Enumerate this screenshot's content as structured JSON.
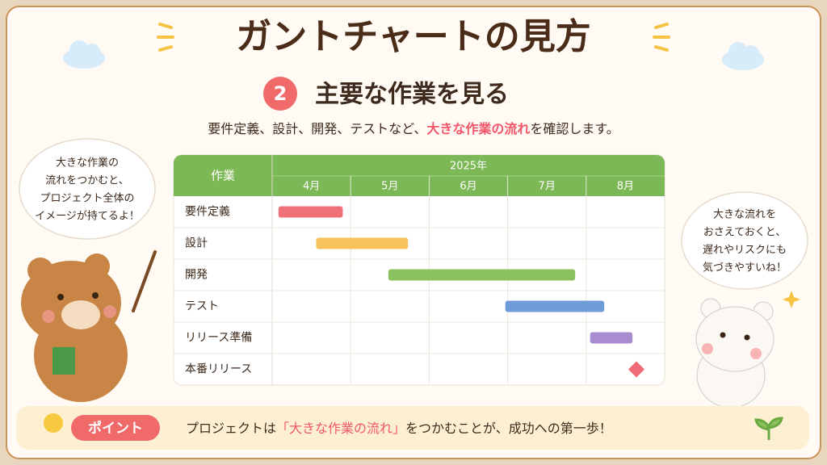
{
  "header": {
    "title": "ガントチャートの見方",
    "step": "2",
    "subtitle": "主要な作業を見る",
    "description": [
      "要件定義、設計、開発、テストなど、",
      "大きな作業の流れ",
      "を確認します。"
    ]
  },
  "gantt": {
    "task_header": "作業",
    "year": "2025年",
    "months": [
      "4月",
      "5月",
      "6月",
      "7月",
      "8月"
    ],
    "xlim": [
      4,
      9
    ],
    "tasks": [
      {
        "name": "要件定義",
        "start": 4.08,
        "end": 4.9,
        "color": "#f07078"
      },
      {
        "name": "設計",
        "start": 4.56,
        "end": 5.73,
        "color": "#f5c35a"
      },
      {
        "name": "開発",
        "start": 5.48,
        "end": 7.86,
        "color": "#8cc160"
      },
      {
        "name": "テスト",
        "start": 6.97,
        "end": 8.23,
        "color": "#6f9bd8"
      },
      {
        "name": "リリース準備",
        "start": 8.05,
        "end": 8.59,
        "color": "#a98bd0"
      }
    ],
    "milestone": {
      "name": "本番リリース",
      "at": 8.64,
      "color": "#f06a78"
    }
  },
  "left_bubble": [
    "大きな作業の",
    "流れをつかむと、",
    "プロジェクト全体の",
    "イメージが持てるよ！"
  ],
  "right_bubble": [
    "大きな流れを",
    "おさえておくと、",
    "遅れやリスクにも",
    "気づきやすいね！"
  ],
  "point": {
    "label": "ポイント",
    "text": [
      "プロジェクトは",
      "「大きな作業の流れ」",
      "をつかむことが、成功への第一歩！"
    ]
  }
}
